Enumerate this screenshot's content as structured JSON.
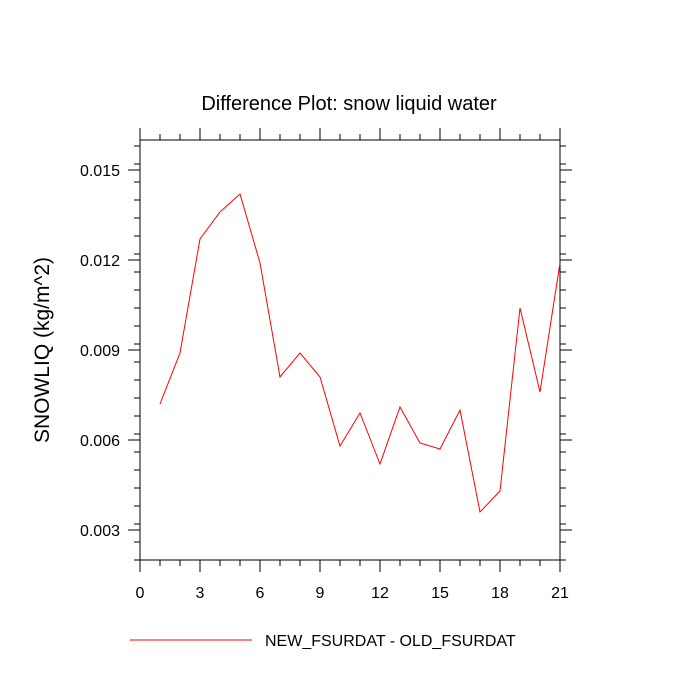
{
  "chart_data": {
    "type": "line",
    "title": "Difference Plot: snow liquid water",
    "xlabel": "",
    "ylabel": "SNOWLIQ  (kg/m^2)",
    "xlim": [
      0,
      21
    ],
    "ylim": [
      0.002,
      0.016
    ],
    "xticks": [
      0,
      3,
      6,
      9,
      12,
      15,
      18,
      21
    ],
    "xtick_labels": [
      "0",
      "3",
      "6",
      "9",
      "12",
      "15",
      "18",
      "21"
    ],
    "yticks": [
      0.003,
      0.006,
      0.009,
      0.012,
      0.015
    ],
    "ytick_labels": [
      "0.003",
      "0.006",
      "0.009",
      "0.012",
      "0.015"
    ],
    "legend_position": "bottom",
    "grid": false,
    "series": [
      {
        "name": "NEW_FSURDAT - OLD_FSURDAT",
        "color": "#ff0000",
        "x": [
          1,
          2,
          3,
          4,
          5,
          6,
          7,
          8,
          9,
          10,
          11,
          12,
          13,
          14,
          15,
          16,
          17,
          18,
          19,
          20,
          21
        ],
        "y": [
          0.0072,
          0.0089,
          0.0127,
          0.0136,
          0.0142,
          0.0119,
          0.0081,
          0.0089,
          0.0081,
          0.0058,
          0.0069,
          0.0052,
          0.0071,
          0.0059,
          0.0057,
          0.007,
          0.0036,
          0.0043,
          0.0104,
          0.0076,
          0.0119
        ]
      }
    ]
  }
}
